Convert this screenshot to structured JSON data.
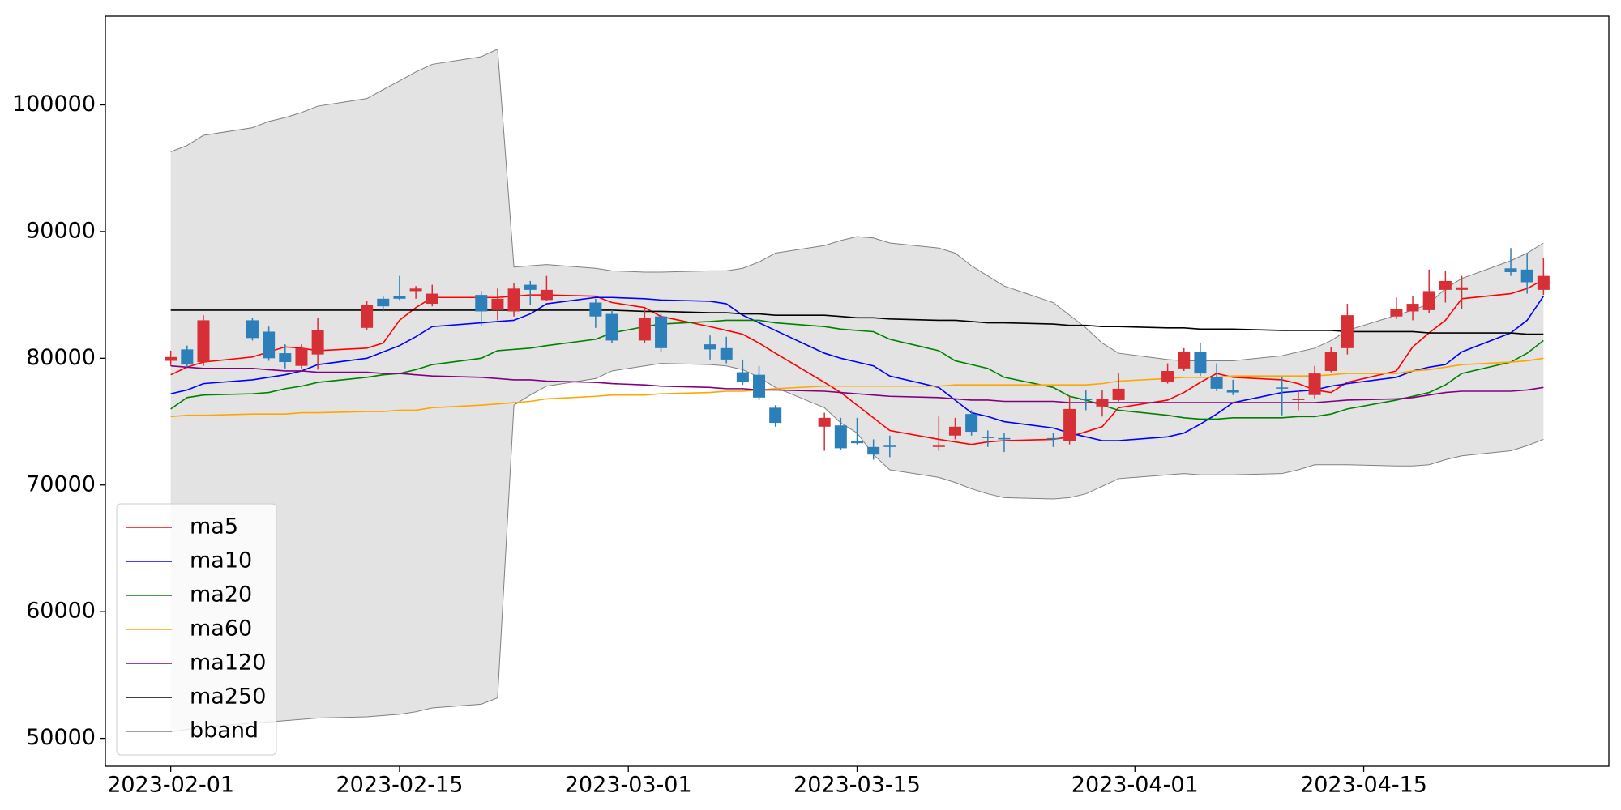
{
  "chart_data": {
    "type": "candlestick",
    "x": [
      "2023-02-01",
      "2023-02-02",
      "2023-02-03",
      "2023-02-06",
      "2023-02-07",
      "2023-02-08",
      "2023-02-09",
      "2023-02-10",
      "2023-02-13",
      "2023-02-14",
      "2023-02-15",
      "2023-02-16",
      "2023-02-17",
      "2023-02-20",
      "2023-02-21",
      "2023-02-22",
      "2023-02-23",
      "2023-02-24",
      "2023-02-27",
      "2023-02-28",
      "2023-03-02",
      "2023-03-03",
      "2023-03-06",
      "2023-03-07",
      "2023-03-08",
      "2023-03-09",
      "2023-03-10",
      "2023-03-13",
      "2023-03-14",
      "2023-03-15",
      "2023-03-16",
      "2023-03-17",
      "2023-03-20",
      "2023-03-21",
      "2023-03-22",
      "2023-03-23",
      "2023-03-24",
      "2023-03-27",
      "2023-03-28",
      "2023-03-29",
      "2023-03-30",
      "2023-03-31",
      "2023-04-03",
      "2023-04-04",
      "2023-04-05",
      "2023-04-06",
      "2023-04-07",
      "2023-04-10",
      "2023-04-11",
      "2023-04-12",
      "2023-04-13",
      "2023-04-14",
      "2023-04-17",
      "2023-04-18",
      "2023-04-19",
      "2023-04-20",
      "2023-04-21",
      "2023-04-24",
      "2023-04-25",
      "2023-04-26"
    ],
    "open": [
      79800,
      80700,
      79700,
      83000,
      82100,
      80400,
      79400,
      80300,
      82400,
      84700,
      84900,
      85300,
      84300,
      85000,
      83800,
      83700,
      85800,
      84600,
      84400,
      83500,
      81400,
      83300,
      81100,
      80800,
      78900,
      78700,
      76100,
      74600,
      74700,
      73500,
      73000,
      73100,
      73000,
      73900,
      75600,
      73800,
      73700,
      73700,
      73500,
      76800,
      76200,
      76700,
      78100,
      79200,
      80500,
      78500,
      77500,
      77700,
      76700,
      77100,
      79000,
      80800,
      83300,
      83700,
      83800,
      85400,
      85400,
      87100,
      87000,
      85400
    ],
    "high": [
      80600,
      81000,
      83400,
      83200,
      82500,
      81100,
      81100,
      83200,
      84500,
      84900,
      86500,
      85700,
      85800,
      85300,
      85500,
      85900,
      86100,
      86500,
      84700,
      83800,
      84000,
      83500,
      81800,
      81700,
      79900,
      79400,
      76300,
      75700,
      75300,
      75300,
      73600,
      73900,
      75400,
      75300,
      75900,
      74300,
      74100,
      74100,
      77000,
      77500,
      77500,
      78800,
      79600,
      80800,
      81200,
      79600,
      78300,
      78500,
      77500,
      79400,
      80900,
      84300,
      84800,
      84900,
      87000,
      86900,
      86500,
      88700,
      88200,
      87900
    ],
    "low": [
      79400,
      79300,
      79400,
      81400,
      79800,
      79200,
      79200,
      79100,
      82200,
      83700,
      84600,
      84700,
      84100,
      82600,
      83000,
      83300,
      84200,
      84500,
      82400,
      81200,
      81200,
      80500,
      79900,
      79600,
      77900,
      76700,
      74600,
      72700,
      72800,
      73200,
      72000,
      72200,
      72700,
      73600,
      73900,
      73000,
      72600,
      73000,
      73200,
      75900,
      75400,
      76600,
      78000,
      79000,
      78600,
      77400,
      77100,
      75500,
      75900,
      76800,
      78900,
      80300,
      83100,
      83000,
      83600,
      84400,
      83900,
      86500,
      85100,
      85000
    ],
    "close": [
      80100,
      79500,
      83000,
      81600,
      80000,
      79700,
      80800,
      82200,
      84200,
      84100,
      84700,
      85500,
      85100,
      83700,
      84700,
      85500,
      85400,
      85400,
      83300,
      81400,
      83200,
      80800,
      80700,
      79900,
      78100,
      76900,
      74900,
      75300,
      72900,
      73300,
      72400,
      73000,
      73100,
      74600,
      74200,
      73700,
      73600,
      73600,
      76000,
      76700,
      76800,
      77600,
      79000,
      80500,
      78800,
      77600,
      77300,
      77600,
      76800,
      78800,
      80500,
      83400,
      83900,
      84300,
      85300,
      86100,
      85600,
      86800,
      86000,
      86500
    ],
    "up_color": "#d62f36",
    "down_color": "#2c7fb8",
    "series": [
      {
        "name": "ma5",
        "color": "red",
        "values": [
          78700,
          79300,
          79700,
          80100,
          80500,
          80900,
          80800,
          80600,
          80800,
          81200,
          83000,
          84000,
          84800,
          84800,
          84800,
          84900,
          85000,
          85000,
          84900,
          84400,
          84000,
          83300,
          82500,
          82200,
          81900,
          81200,
          80400,
          78100,
          77300,
          76300,
          75300,
          74300,
          73600,
          73400,
          73200,
          73400,
          73500,
          73600,
          73800,
          74200,
          74600,
          76100,
          76700,
          77300,
          78100,
          78800,
          78500,
          78300,
          78000,
          77500,
          77300,
          78100,
          79000,
          80900,
          82000,
          83000,
          84700,
          85100,
          85500,
          86200
        ]
      },
      {
        "name": "ma10",
        "color": "blue",
        "values": [
          77200,
          77500,
          78000,
          78300,
          78500,
          78700,
          79000,
          79500,
          80000,
          80500,
          81000,
          81700,
          82500,
          82800,
          82900,
          83000,
          83500,
          84300,
          84800,
          84800,
          84700,
          84600,
          84500,
          84300,
          83400,
          82800,
          82200,
          80400,
          80000,
          79700,
          79400,
          78600,
          77700,
          76700,
          75700,
          75400,
          75000,
          74500,
          74100,
          73800,
          73500,
          73500,
          73800,
          74100,
          74800,
          75600,
          76500,
          77300,
          77400,
          77500,
          77800,
          78000,
          78500,
          79000,
          79300,
          79500,
          80500,
          82000,
          83000,
          84900
        ]
      },
      {
        "name": "ma20",
        "color": "green",
        "values": [
          76000,
          76900,
          77100,
          77200,
          77300,
          77600,
          77800,
          78100,
          78500,
          78700,
          78800,
          79100,
          79500,
          80000,
          80600,
          80700,
          80800,
          81000,
          81500,
          82000,
          82500,
          82700,
          82900,
          83000,
          83000,
          83000,
          82800,
          82500,
          82300,
          82200,
          82100,
          81500,
          80600,
          79800,
          79500,
          79200,
          78500,
          77700,
          77000,
          76700,
          76300,
          75900,
          75500,
          75300,
          75200,
          75200,
          75300,
          75300,
          75400,
          75400,
          75600,
          76000,
          76700,
          77000,
          77300,
          77900,
          78800,
          79700,
          80400,
          81400
        ]
      },
      {
        "name": "ma60",
        "color": "orange",
        "values": [
          75400,
          75500,
          75500,
          75600,
          75600,
          75600,
          75700,
          75700,
          75800,
          75800,
          75900,
          75900,
          76100,
          76300,
          76400,
          76500,
          76600,
          76800,
          77000,
          77100,
          77100,
          77200,
          77300,
          77400,
          77400,
          77500,
          77600,
          77800,
          77800,
          77800,
          77800,
          77800,
          77800,
          77900,
          77900,
          77900,
          77900,
          77900,
          77900,
          77900,
          78000,
          78200,
          78400,
          78500,
          78500,
          78500,
          78600,
          78600,
          78600,
          78600,
          78700,
          78800,
          78800,
          79000,
          79100,
          79300,
          79500,
          79700,
          79800,
          80000
        ]
      },
      {
        "name": "ma120",
        "color": "purple",
        "values": [
          79400,
          79300,
          79200,
          79200,
          79100,
          79000,
          79000,
          78900,
          78900,
          78800,
          78800,
          78700,
          78600,
          78500,
          78400,
          78300,
          78300,
          78200,
          78100,
          78000,
          77900,
          77800,
          77700,
          77600,
          77600,
          77500,
          77500,
          77400,
          77300,
          77200,
          77100,
          77000,
          76900,
          76800,
          76700,
          76700,
          76600,
          76600,
          76500,
          76500,
          76500,
          76500,
          76500,
          76500,
          76500,
          76500,
          76500,
          76500,
          76500,
          76500,
          76600,
          76700,
          76800,
          76900,
          77100,
          77300,
          77400,
          77400,
          77500,
          77700
        ]
      },
      {
        "name": "ma250",
        "color": "black",
        "values": [
          83800,
          83800,
          83800,
          83800,
          83800,
          83800,
          83800,
          83800,
          83800,
          83800,
          83800,
          83800,
          83800,
          83800,
          83800,
          83800,
          83800,
          83800,
          83800,
          83800,
          83700,
          83700,
          83600,
          83600,
          83500,
          83500,
          83400,
          83400,
          83300,
          83200,
          83200,
          83100,
          83000,
          83000,
          82900,
          82800,
          82800,
          82700,
          82600,
          82600,
          82500,
          82500,
          82400,
          82400,
          82300,
          82300,
          82300,
          82200,
          82200,
          82200,
          82200,
          82100,
          82100,
          82100,
          82000,
          82000,
          82000,
          82000,
          81900,
          81900
        ]
      }
    ],
    "bband": {
      "name": "bband",
      "color": "gray",
      "fill": "#e3e3e3",
      "upper": [
        96300,
        96800,
        97600,
        98200,
        98700,
        99000,
        99400,
        99900,
        100500,
        101200,
        101900,
        102600,
        103200,
        103800,
        104400,
        87200,
        87300,
        87400,
        87100,
        86900,
        86800,
        86800,
        86900,
        86900,
        87100,
        87600,
        88300,
        88900,
        89300,
        89600,
        89500,
        89100,
        88700,
        88300,
        87300,
        86500,
        85700,
        84400,
        83400,
        82400,
        81200,
        80400,
        79900,
        79800,
        79800,
        79800,
        79800,
        80200,
        80500,
        80800,
        81400,
        82200,
        83400,
        83800,
        84300,
        85500,
        86300,
        87700,
        88300,
        89100
      ],
      "lower": [
        50500,
        50700,
        50900,
        51200,
        51300,
        51400,
        51500,
        51600,
        51700,
        51800,
        51900,
        52100,
        52400,
        52700,
        53200,
        76300,
        77100,
        77800,
        78400,
        79000,
        79400,
        79600,
        79500,
        79400,
        79100,
        78500,
        77700,
        76100,
        74900,
        74100,
        72400,
        71200,
        70600,
        70200,
        69700,
        69300,
        69000,
        68900,
        69000,
        69300,
        69900,
        70500,
        70800,
        70900,
        70800,
        70800,
        70800,
        70900,
        71200,
        71600,
        71600,
        71600,
        71500,
        71500,
        71600,
        72000,
        72300,
        72700,
        73100,
        73600
      ]
    },
    "xlim": [
      "2023-01-28",
      "2023-04-30"
    ],
    "xticks": [
      "2023-02-01",
      "2023-02-15",
      "2023-03-01",
      "2023-03-15",
      "2023-04-01",
      "2023-04-15"
    ],
    "ylim": [
      47800,
      107000
    ],
    "yticks": [
      50000,
      60000,
      70000,
      80000,
      90000,
      100000
    ],
    "legend": "lower left"
  }
}
